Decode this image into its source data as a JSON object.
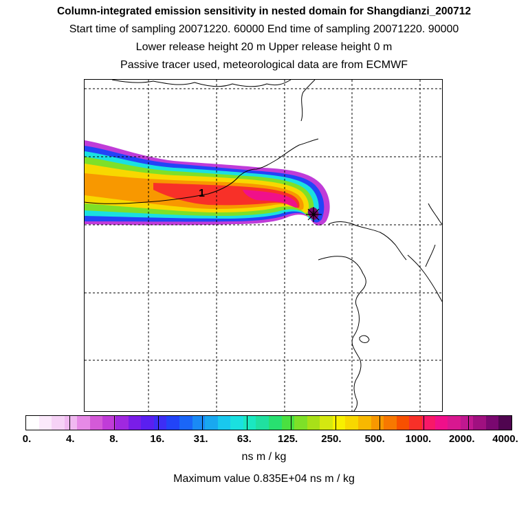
{
  "header": {
    "title": "Column-integrated emission sensitivity in nested domain for Shangdianzi_200712",
    "sampling": "Start time of sampling 20071220. 60000     End time of sampling 20071220. 90000",
    "release": "Lower release height   20 m          Upper release height    0 m",
    "info": "Passive tracer used, meteorological data are from ECMWF"
  },
  "map": {
    "marker_label": "1",
    "receptor_marker": "asterisk-receptor-icon"
  },
  "legend": {
    "colors": [
      "#ffffff",
      "#fbe9fb",
      "#f6d2f6",
      "#f0b8f0",
      "#e68ae6",
      "#d45ad8",
      "#c03cd8",
      "#a028e0",
      "#7a1de8",
      "#5a1ff0",
      "#3d2ef5",
      "#2244f8",
      "#1a66f8",
      "#1a8af5",
      "#19a8f0",
      "#19c8ee",
      "#1ae0e0",
      "#1ae8c0",
      "#20e0a0",
      "#28e070",
      "#4ae040",
      "#7ee028",
      "#a8e018",
      "#d4e810",
      "#f8f000",
      "#f8d800",
      "#f8b800",
      "#f89800",
      "#f87800",
      "#f85000",
      "#f83028",
      "#f81868",
      "#f0108a",
      "#d81890",
      "#c01890",
      "#a01080",
      "#7a0870",
      "#500550"
    ],
    "labels": [
      "0.",
      "4.",
      "8.",
      "16.",
      "31.",
      "63.",
      "125.",
      "250.",
      "500.",
      "1000.",
      "2000.",
      "4000."
    ],
    "units": "ns m / kg",
    "max_value": "Maximum value  0.835E+04 ns m / kg"
  }
}
